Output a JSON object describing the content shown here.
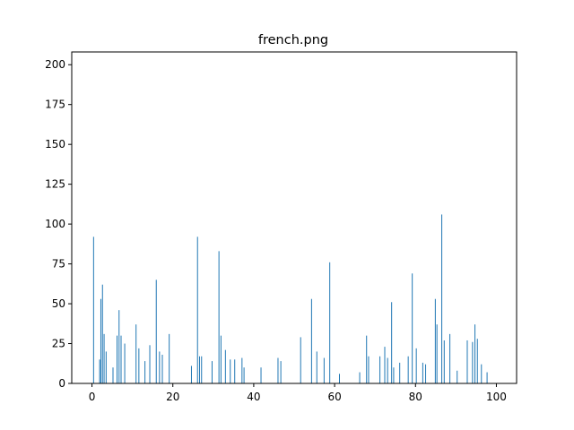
{
  "chart_data": {
    "type": "bar",
    "title": "french.png",
    "xlabel": "",
    "ylabel": "",
    "xlim": [
      -5,
      105
    ],
    "ylim": [
      0,
      208
    ],
    "xticks": [
      0,
      20,
      40,
      60,
      80,
      100
    ],
    "yticks": [
      0,
      25,
      50,
      75,
      100,
      125,
      150,
      175,
      200
    ],
    "grid": false,
    "bar_color": "#1f77b4",
    "tall_bars": {
      "x": [
        0.4,
        1.9,
        2.2,
        2.6,
        3.0,
        3.5,
        5.2,
        6.2,
        6.7,
        7.2,
        8.1,
        10.9,
        11.6,
        13.1,
        14.3,
        15.9,
        16.7,
        17.4,
        19.1,
        24.6,
        26.1,
        26.6,
        27.1,
        29.7,
        31.4,
        31.9,
        33.0,
        34.2,
        35.3,
        37.1,
        37.6,
        41.8,
        46.0,
        46.7,
        51.6,
        54.3,
        55.6,
        57.4,
        58.8,
        61.2,
        66.2,
        67.9,
        68.4,
        71.2,
        72.4,
        73.1,
        74.1,
        74.6,
        76.1,
        78.2,
        79.2,
        80.2,
        81.8,
        82.5,
        84.9,
        85.3,
        86.5,
        87.1,
        88.5,
        90.3,
        92.8,
        94.1,
        94.7,
        95.3,
        96.3,
        97.7
      ],
      "y": [
        92,
        15,
        53,
        62,
        31,
        20,
        10,
        30,
        46,
        30,
        25,
        37,
        22,
        14,
        24,
        65,
        20,
        18,
        31,
        11,
        92,
        17,
        17,
        14,
        83,
        30,
        21,
        15,
        15,
        16,
        10,
        10,
        16,
        14,
        29,
        53,
        20,
        16,
        76,
        6,
        7,
        30,
        17,
        17,
        23,
        16,
        51,
        10,
        13,
        17,
        69,
        22,
        13,
        12,
        53,
        37,
        106,
        27,
        31,
        8,
        27,
        26,
        37,
        28,
        12,
        7
      ]
    }
  }
}
